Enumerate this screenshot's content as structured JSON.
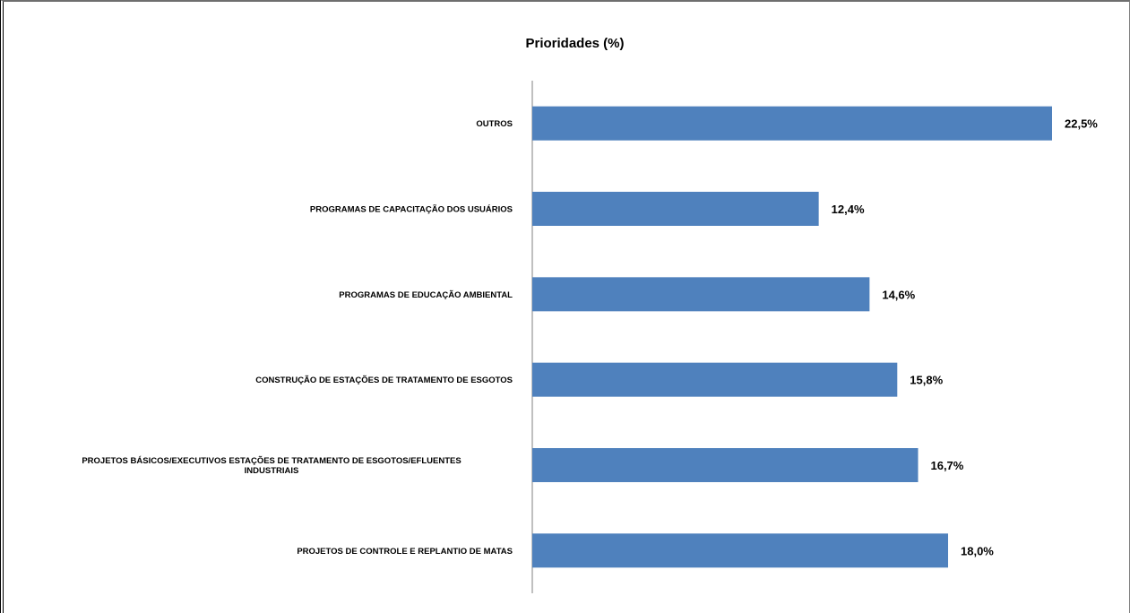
{
  "chart_data": {
    "type": "bar",
    "orientation": "horizontal",
    "title": "Prioridades (%)",
    "xlabel": "",
    "ylabel": "",
    "xlim": [
      0,
      22.5
    ],
    "grid": false,
    "legend": "none",
    "bar_color": "#4F81BD",
    "categories": [
      [
        "OUTROS"
      ],
      [
        "PROGRAMAS DE CAPACITAÇÃO DOS USUÁRIOS"
      ],
      [
        "PROGRAMAS DE EDUCAÇÃO AMBIENTAL"
      ],
      [
        "CONSTRUÇÃO DE ESTAÇÕES DE TRATAMENTO DE ESGOTOS"
      ],
      [
        "PROJETOS BÁSICOS/EXECUTIVOS ESTAÇÕES DE TRATAMENTO DE ESGOTOS/EFLUENTES",
        "INDUSTRIAIS"
      ],
      [
        "PROJETOS DE CONTROLE E REPLANTIO DE MATAS"
      ]
    ],
    "values": [
      22.5,
      12.4,
      14.6,
      15.8,
      16.7,
      18.0
    ],
    "data_labels": [
      "22,5%",
      "12,4%",
      "14,6%",
      "15,8%",
      "16,7%",
      "18,0%"
    ]
  }
}
